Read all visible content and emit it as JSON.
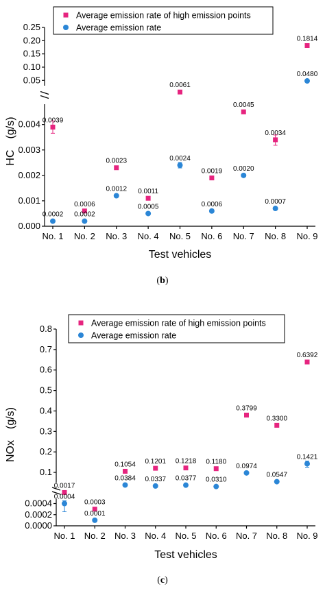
{
  "colors": {
    "high": "#e6247f",
    "avg": "#2b86d6",
    "axis": "#000000"
  },
  "chart_data": [
    {
      "type": "scatter",
      "panel_label": "b",
      "ylabel": "HC　(g/s)",
      "xlabel": "Test vehicles",
      "categories": [
        "No. 1",
        "No. 2",
        "No. 3",
        "No. 4",
        "No. 5",
        "No. 6",
        "No. 7",
        "No. 8",
        "No. 9"
      ],
      "legend": [
        "Average emission rate of high emission points",
        "Average emission rate"
      ],
      "legend_position": "top",
      "y_break": true,
      "ylim_lower": [
        0,
        0.0048
      ],
      "ylim_upper": [
        0.03,
        0.25
      ],
      "yticks_lower": [
        "0.000",
        "0.001",
        "0.002",
        "0.003",
        "0.004"
      ],
      "yticks_upper": [
        "0.05",
        "0.10",
        "0.15",
        "0.20",
        "0.25"
      ],
      "series": [
        {
          "name": "Average emission rate of high emission points",
          "marker": "square",
          "values": [
            0.0039,
            0.0006,
            0.0023,
            0.0011,
            0.0061,
            0.0019,
            0.0045,
            0.0034,
            0.1814
          ],
          "labels": [
            "0.0039",
            "0.0006",
            "0.0023",
            "0.0011",
            "0.0061",
            "0.0019",
            "0.0045",
            "0.0034",
            "0.1814"
          ]
        },
        {
          "name": "Average emission rate",
          "marker": "circle",
          "values": [
            0.0002,
            0.0002,
            0.0012,
            0.0005,
            0.0024,
            0.0006,
            0.002,
            0.0007,
            0.048
          ],
          "labels": [
            "0.0002",
            "0.0002",
            "0.0012",
            "0.0005",
            "0.0024",
            "0.0006",
            "0.0020",
            "0.0007",
            "0.0480"
          ]
        }
      ]
    },
    {
      "type": "scatter",
      "panel_label": "c",
      "ylabel": "NOx　(g/s)",
      "xlabel": "Test vehicles",
      "categories": [
        "No. 1",
        "No. 2",
        "No. 3",
        "No. 4",
        "No. 5",
        "No. 6",
        "No. 7",
        "No. 8",
        "No. 9"
      ],
      "legend": [
        "Average emission rate of high emission points",
        "Average emission rate"
      ],
      "legend_position": "top",
      "y_break": true,
      "ylim_lower": [
        0,
        0.00048
      ],
      "ylim_upper": [
        0.05,
        0.8
      ],
      "yticks_lower": [
        "0.0000",
        "0.0002",
        "0.0004"
      ],
      "yticks_upper": [
        "0.1",
        "0.2",
        "0.3",
        "0.4",
        "0.5",
        "0.6",
        "0.7",
        "0.8"
      ],
      "series": [
        {
          "name": "Average emission rate of high emission points",
          "marker": "square",
          "values": [
            0.0017,
            0.0003,
            0.1054,
            0.1201,
            0.1218,
            0.118,
            0.3799,
            0.33,
            0.6392
          ],
          "labels": [
            "0.0017",
            "0.0003",
            "0.1054",
            "0.1201",
            "0.1218",
            "0.1180",
            "0.3799",
            "0.3300",
            "0.6392"
          ]
        },
        {
          "name": "Average emission rate",
          "marker": "circle",
          "values": [
            0.0004,
            0.0001,
            0.0384,
            0.0337,
            0.0377,
            0.031,
            0.0974,
            0.0547,
            0.1421
          ],
          "labels": [
            "0.0004",
            "0.0001",
            "0.0384",
            "0.0337",
            "0.0377",
            "0.0310",
            "0.0974",
            "0.0547",
            "0.1421"
          ]
        }
      ]
    }
  ]
}
